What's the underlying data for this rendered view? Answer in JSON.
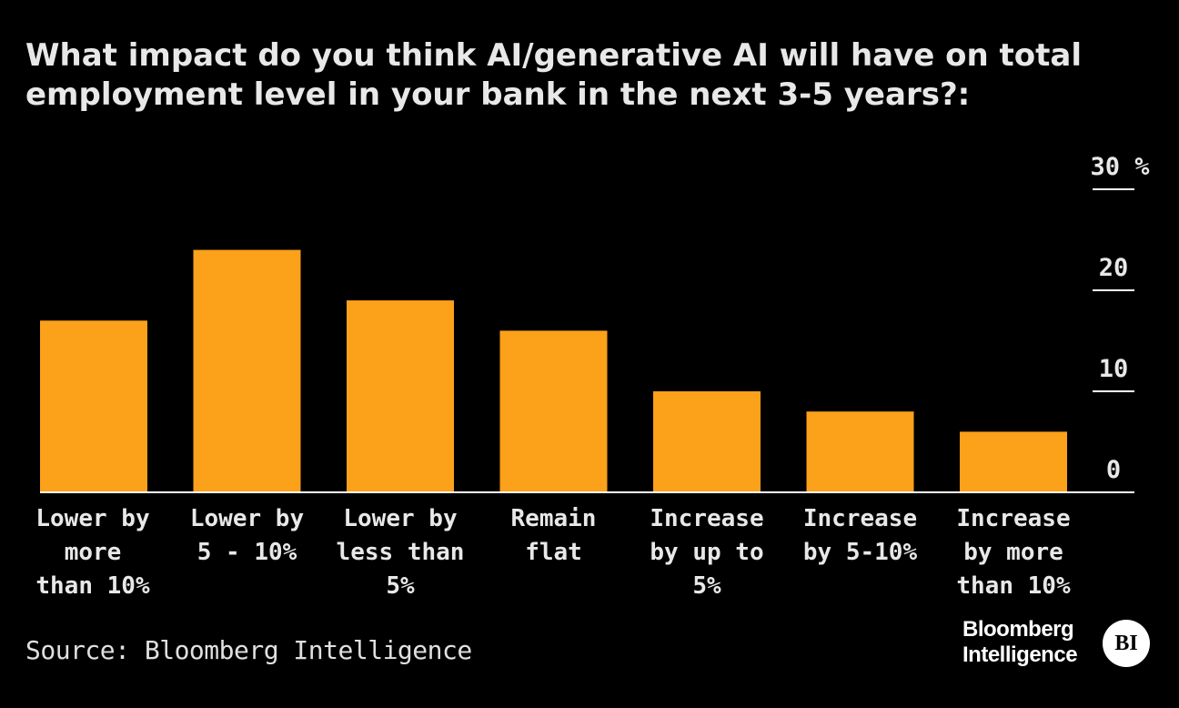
{
  "title_lines": [
    "What impact do you think AI/generative AI will have on total",
    "employment level in your bank in the next 3-5 years?:"
  ],
  "source": "Source: Bloomberg Intelligence",
  "logo": {
    "line1": "Bloomberg",
    "line2": "Intelligence",
    "badge": "BI"
  },
  "colors": {
    "bar": "#FBA11A",
    "background": "#000000",
    "text": "#E8E8E8",
    "axis": "#FFFFFF"
  },
  "chart_data": {
    "type": "bar",
    "title": "What impact do you think AI/generative AI will have on total employment level in your bank in the next 3-5 years?:",
    "categories": [
      [
        "Lower by",
        "more",
        "than 10%"
      ],
      [
        "Lower by",
        "5 - 10%"
      ],
      [
        "Lower by",
        "less than",
        "5%"
      ],
      [
        "Remain",
        "flat"
      ],
      [
        "Increase",
        "by up to",
        "5%"
      ],
      [
        "Increase",
        "by 5-10%"
      ],
      [
        "Increase",
        "by more",
        "than 10%"
      ]
    ],
    "values": [
      17,
      24,
      19,
      16,
      10,
      8,
      6
    ],
    "ylim": [
      0,
      30
    ],
    "yticks": [
      "0",
      "10",
      "20",
      "30 %"
    ],
    "ytick_values": [
      0,
      10,
      20,
      30
    ],
    "xlabel": "",
    "ylabel": "",
    "axis_side": "right"
  }
}
